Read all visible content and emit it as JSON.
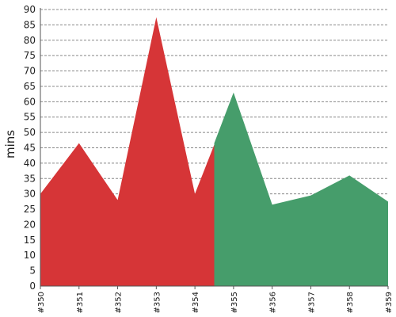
{
  "chart_data": {
    "type": "area",
    "ylabel": "mins",
    "xlabel": "",
    "ylim": [
      0,
      90
    ],
    "y_tick_step": 5,
    "grid": "horizontal dashed",
    "categories": [
      "#350",
      "#351",
      "#352",
      "#353",
      "#354",
      "#355",
      "#356",
      "#357",
      "#358",
      "#359"
    ],
    "values": [
      30,
      46.5,
      28,
      87.5,
      30,
      63,
      26.5,
      29.5,
      36,
      27.5
    ],
    "red_extra_point": {
      "x": 4.5,
      "y": 46
    },
    "split_x": 4.5,
    "colors": {
      "before": "#d63537",
      "after": "#469d6b",
      "grid": "#888888",
      "axis": "#555555"
    }
  }
}
